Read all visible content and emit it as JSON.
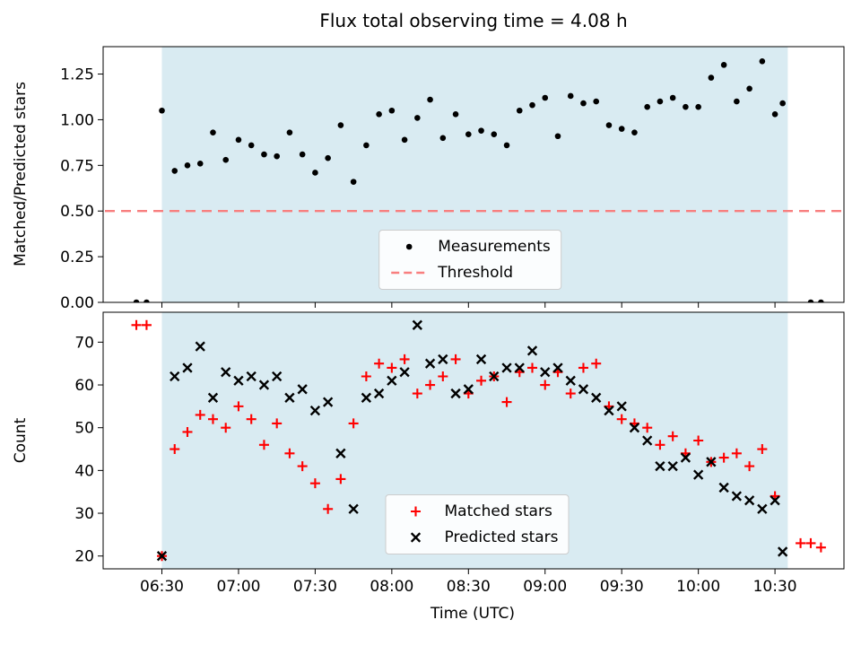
{
  "chart_data": {
    "type": "scatter",
    "title": "Flux total observing time = 4.08 h",
    "xlabel": "Time (UTC)",
    "x_tick_labels": [
      "06:30",
      "07:00",
      "07:30",
      "08:00",
      "08:30",
      "09:00",
      "09:30",
      "10:00",
      "10:30"
    ],
    "x_range": [
      "06:07",
      "10:57"
    ],
    "shaded_region": {
      "start": "06:30",
      "end": "10:35",
      "color": "#d9ebf2"
    },
    "top": {
      "ylabel": "Matched/Predicted stars",
      "y_ticks": [
        0.0,
        0.25,
        0.5,
        0.75,
        1.0,
        1.25
      ],
      "y_tick_labels": [
        "0.00",
        "0.25",
        "0.50",
        "0.75",
        "1.00",
        "1.25"
      ],
      "ylim": [
        0,
        1.4
      ],
      "threshold": {
        "value": 0.5,
        "color": "#f87f7f",
        "style": "dashed",
        "label": "Threshold"
      },
      "series": [
        {
          "name": "Measurements",
          "marker": "dot",
          "color": "#000000",
          "x_start": "06:30",
          "x_step_min": 5,
          "values": [
            1.05,
            0.72,
            0.75,
            0.76,
            0.93,
            0.78,
            0.89,
            0.86,
            0.81,
            0.8,
            0.93,
            0.81,
            0.71,
            0.79,
            0.97,
            0.66,
            0.86,
            1.03,
            1.05,
            0.89,
            1.01,
            1.11,
            0.9,
            1.03,
            0.92,
            0.94,
            0.92,
            0.86,
            1.05,
            1.08,
            1.12,
            0.91,
            1.13,
            1.09,
            1.1,
            0.97,
            0.95,
            0.93,
            1.07,
            1.1,
            1.12,
            1.07,
            1.07,
            1.23,
            1.3,
            1.1,
            1.17,
            1.32,
            1.03
          ],
          "extra_points": [
            {
              "x": "06:20",
              "y": 0.0
            },
            {
              "x": "06:24",
              "y": 0.0
            },
            {
              "x": "10:33",
              "y": 1.09
            },
            {
              "x": "10:44",
              "y": 0.0
            },
            {
              "x": "10:48",
              "y": 0.0
            }
          ]
        }
      ]
    },
    "bottom": {
      "ylabel": "Count",
      "y_ticks": [
        20,
        30,
        40,
        50,
        60,
        70
      ],
      "y_tick_labels": [
        "20",
        "30",
        "40",
        "50",
        "60",
        "70"
      ],
      "ylim": [
        17,
        77
      ],
      "series": [
        {
          "name": "Matched stars",
          "marker": "plus",
          "color": "#ff0000",
          "x_start": "06:30",
          "x_step_min": 5,
          "values": [
            20,
            45,
            49,
            53,
            52,
            50,
            55,
            52,
            46,
            51,
            44,
            41,
            37,
            31,
            38,
            51,
            62,
            65,
            64,
            66,
            58,
            60,
            62,
            66,
            58,
            61,
            62,
            56,
            63,
            64,
            60,
            63,
            58,
            64,
            65,
            55,
            52,
            51,
            50,
            46,
            48,
            44,
            47,
            42,
            43,
            44,
            41,
            45,
            34
          ],
          "extra_points": [
            {
              "x": "06:20",
              "y": 74
            },
            {
              "x": "06:24",
              "y": 74
            },
            {
              "x": "10:40",
              "y": 23
            },
            {
              "x": "10:44",
              "y": 23
            },
            {
              "x": "10:48",
              "y": 22
            }
          ]
        },
        {
          "name": "Predicted stars",
          "marker": "x",
          "color": "#000000",
          "x_start": "06:30",
          "x_step_min": 5,
          "values": [
            20,
            62,
            64,
            69,
            57,
            63,
            61,
            62,
            60,
            62,
            57,
            59,
            54,
            56,
            44,
            31,
            57,
            58,
            61,
            63,
            74,
            65,
            66,
            58,
            59,
            66,
            62,
            64,
            64,
            68,
            63,
            64,
            61,
            59,
            57,
            54,
            55,
            50,
            47,
            41,
            41,
            43,
            39,
            42,
            36,
            34,
            33,
            31,
            33
          ],
          "extra_points": [
            {
              "x": "10:33",
              "y": 21
            }
          ]
        }
      ]
    }
  }
}
